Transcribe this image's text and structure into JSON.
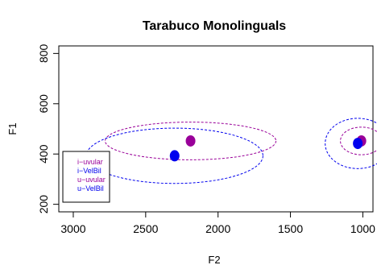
{
  "chart_data": {
    "type": "scatter",
    "title": "Tarabuco Monolinguals",
    "xlabel": "F2",
    "ylabel": "F1",
    "xlim": [
      3100,
      930
    ],
    "ylim": [
      830,
      170
    ],
    "x_ticks": [
      3000,
      2500,
      2000,
      1500,
      1000
    ],
    "y_ticks": [
      200,
      400,
      600,
      800
    ],
    "grid": false,
    "legend_position": "bottom-left",
    "series": [
      {
        "name": "i−uvular",
        "color": "#990099",
        "points": [
          {
            "x": 2190,
            "y": 452
          }
        ],
        "ellipse": {
          "cx": 2190,
          "cy": 452,
          "rx": 590,
          "ry": 75
        }
      },
      {
        "name": "i−VelBil",
        "color": "#0000ee",
        "points": [
          {
            "x": 2300,
            "y": 393
          }
        ],
        "ellipse": {
          "cx": 2300,
          "cy": 393,
          "rx": 610,
          "ry": 110
        }
      },
      {
        "name": "u−uvular",
        "color": "#990099",
        "points": [
          {
            "x": 1010,
            "y": 452
          }
        ],
        "ellipse": {
          "cx": 1010,
          "cy": 452,
          "rx": 145,
          "ry": 55
        }
      },
      {
        "name": "u−VelBil",
        "color": "#0000ee",
        "points": [
          {
            "x": 1035,
            "y": 442
          }
        ],
        "ellipse": {
          "cx": 1035,
          "cy": 442,
          "rx": 225,
          "ry": 100
        }
      }
    ]
  }
}
